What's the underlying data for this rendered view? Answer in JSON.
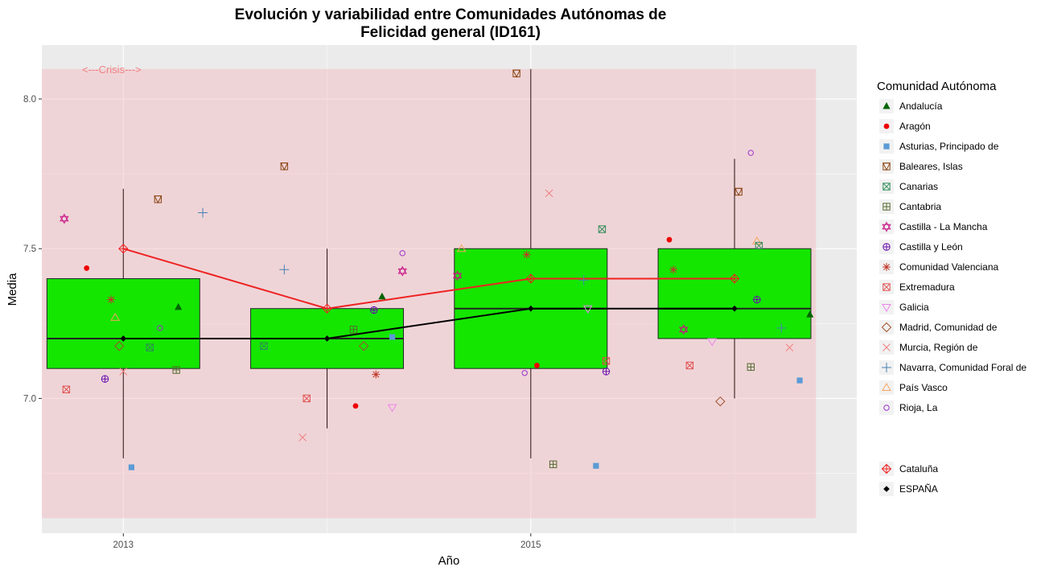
{
  "chart_data": {
    "type": "box",
    "title_line1": "Evolución y variabilidad entre Comunidades Autónomas de",
    "title_line2": "Felicidad general (ID161)",
    "xlabel": "Año",
    "ylabel": "Media",
    "x_ticks": [
      "2013",
      "2015"
    ],
    "y_ticks": [
      "7.0",
      "7.5",
      "8.0"
    ],
    "xlim": [
      2012.6,
      2016.6
    ],
    "ylim": [
      6.55,
      8.18
    ],
    "annotation": {
      "text": "<---Crisis--->",
      "color": "#f08080"
    },
    "crisis_band": {
      "x": [
        2012.6,
        2016.4
      ],
      "y": [
        6.6,
        8.1
      ],
      "color": "#f4b8be"
    },
    "box_fill": "#14e600",
    "boxes": [
      {
        "x": 2013,
        "min": 6.8,
        "q1": 7.1,
        "median": 7.2,
        "q3": 7.4,
        "max": 7.7
      },
      {
        "x": 2014,
        "min": 6.9,
        "q1": 7.1,
        "median": 7.2,
        "q3": 7.3,
        "max": 7.5
      },
      {
        "x": 2015,
        "min": 6.8,
        "q1": 7.1,
        "median": 7.3,
        "q3": 7.5,
        "max": 8.1
      },
      {
        "x": 2016,
        "min": 7.0,
        "q1": 7.2,
        "median": 7.3,
        "q3": 7.5,
        "max": 7.8
      }
    ],
    "legend_title": "Comunidad Autónoma",
    "legend_regions": [
      {
        "name": "Andalucía",
        "shape": "triangle-filled",
        "color": "#006400"
      },
      {
        "name": "Aragón",
        "shape": "circle-filled",
        "color": "#ee0000"
      },
      {
        "name": "Asturias, Principado de",
        "shape": "square-filled",
        "color": "#5b9bd5"
      },
      {
        "name": "Baleares, Islas",
        "shape": "square-triangle",
        "color": "#8b4513"
      },
      {
        "name": "Canarias",
        "shape": "square-x",
        "color": "#2e8b57"
      },
      {
        "name": "Cantabria",
        "shape": "square-plus",
        "color": "#556b2f"
      },
      {
        "name": "Castilla - La Mancha",
        "shape": "star-of-david",
        "color": "#c71585"
      },
      {
        "name": "Castilla y León",
        "shape": "circle-plus",
        "color": "#6a0dad"
      },
      {
        "name": "Comunidad Valenciana",
        "shape": "asterisk",
        "color": "#c0392b"
      },
      {
        "name": "Extremadura",
        "shape": "square-x",
        "color": "#e05050"
      },
      {
        "name": "Galicia",
        "shape": "triangle-down",
        "color": "#ee82ee"
      },
      {
        "name": "Madrid, Comunidad de",
        "shape": "diamond",
        "color": "#a0522d"
      },
      {
        "name": "Murcia, Región de",
        "shape": "x",
        "color": "#f08080"
      },
      {
        "name": "Navarra, Comunidad Foral de",
        "shape": "plus",
        "color": "#4682b4"
      },
      {
        "name": "País Vasco",
        "shape": "triangle-open",
        "color": "#f4a460"
      },
      {
        "name": "Rioja, La",
        "shape": "circle-open",
        "color": "#9932cc"
      }
    ],
    "legend_lines": [
      {
        "name": "Cataluña",
        "shape": "diamond-plus",
        "color": "#ee2222"
      },
      {
        "name": "ESPAÑA",
        "shape": "diamond-filled",
        "color": "#000000"
      }
    ],
    "series": [
      {
        "name": "Cataluña",
        "color": "#ee2222",
        "x": [
          2013,
          2014,
          2015,
          2016
        ],
        "y": [
          7.5,
          7.3,
          7.4,
          7.4
        ]
      },
      {
        "name": "ESPAÑA",
        "color": "#000000",
        "x": [
          2013,
          2014,
          2015,
          2016
        ],
        "y": [
          7.2,
          7.2,
          7.3,
          7.3
        ]
      }
    ],
    "points": [
      {
        "name": "Castilla - La Mancha",
        "x": 2012.71,
        "y": 7.6
      },
      {
        "name": "Aragón",
        "x": 2012.82,
        "y": 7.435
      },
      {
        "name": "Extremadura",
        "x": 2012.72,
        "y": 7.03
      },
      {
        "name": "Castilla y León",
        "x": 2012.91,
        "y": 7.065
      },
      {
        "name": "Comunidad Valenciana",
        "x": 2012.94,
        "y": 7.33
      },
      {
        "name": "País Vasco",
        "x": 2012.96,
        "y": 7.27
      },
      {
        "name": "Madrid, Comunidad de",
        "x": 2012.98,
        "y": 7.175
      },
      {
        "name": "Murcia, Región de",
        "x": 2013.0,
        "y": 7.09
      },
      {
        "name": "Asturias, Principado de",
        "x": 2013.04,
        "y": 6.77
      },
      {
        "name": "Canarias",
        "x": 2013.13,
        "y": 7.17
      },
      {
        "name": "Baleares, Islas",
        "x": 2013.17,
        "y": 7.665
      },
      {
        "name": "Rioja, La",
        "x": 2013.18,
        "y": 7.235
      },
      {
        "name": "Cantabria",
        "x": 2013.26,
        "y": 7.095
      },
      {
        "name": "Andalucía",
        "x": 2013.27,
        "y": 7.305
      },
      {
        "name": "Navarra, Comunidad Foral de",
        "x": 2013.39,
        "y": 7.62
      },
      {
        "name": "Canarias",
        "x": 2013.69,
        "y": 7.175
      },
      {
        "name": "Navarra, Comunidad Foral de",
        "x": 2013.79,
        "y": 7.43
      },
      {
        "name": "Baleares, Islas",
        "x": 2013.79,
        "y": 7.775
      },
      {
        "name": "Murcia, Región de",
        "x": 2013.88,
        "y": 6.87
      },
      {
        "name": "Extremadura",
        "x": 2013.9,
        "y": 7.0
      },
      {
        "name": "Aragón",
        "x": 2014.14,
        "y": 6.975
      },
      {
        "name": "Cantabria",
        "x": 2014.13,
        "y": 7.23
      },
      {
        "name": "Madrid, Comunidad de",
        "x": 2014.18,
        "y": 7.175
      },
      {
        "name": "Castilla y León",
        "x": 2014.23,
        "y": 7.295
      },
      {
        "name": "Comunidad Valenciana",
        "x": 2014.24,
        "y": 7.08
      },
      {
        "name": "Andalucía",
        "x": 2014.27,
        "y": 7.34
      },
      {
        "name": "Galicia",
        "x": 2014.32,
        "y": 6.97
      },
      {
        "name": "Asturias, Principado de",
        "x": 2014.32,
        "y": 7.205
      },
      {
        "name": "Castilla - La Mancha",
        "x": 2014.37,
        "y": 7.425
      },
      {
        "name": "Rioja, La",
        "x": 2014.37,
        "y": 7.485
      },
      {
        "name": "Castilla - La Mancha",
        "x": 2014.64,
        "y": 7.41
      },
      {
        "name": "País Vasco",
        "x": 2014.66,
        "y": 7.5
      },
      {
        "name": "Baleares, Islas",
        "x": 2014.93,
        "y": 8.085
      },
      {
        "name": "Rioja, La",
        "x": 2014.97,
        "y": 7.085
      },
      {
        "name": "Comunidad Valenciana",
        "x": 2014.98,
        "y": 7.48
      },
      {
        "name": "Aragón",
        "x": 2015.03,
        "y": 7.11
      },
      {
        "name": "Murcia, Región de",
        "x": 2015.09,
        "y": 7.685
      },
      {
        "name": "Cantabria",
        "x": 2015.11,
        "y": 6.78
      },
      {
        "name": "Navarra, Comunidad Foral de",
        "x": 2015.26,
        "y": 7.395
      },
      {
        "name": "Galicia",
        "x": 2015.28,
        "y": 7.3
      },
      {
        "name": "Asturias, Principado de",
        "x": 2015.32,
        "y": 6.775
      },
      {
        "name": "Canarias",
        "x": 2015.35,
        "y": 7.565
      },
      {
        "name": "Castilla y León",
        "x": 2015.37,
        "y": 7.09
      },
      {
        "name": "Extremadura",
        "x": 2015.37,
        "y": 7.125
      },
      {
        "name": "Aragón",
        "x": 2015.68,
        "y": 7.53
      },
      {
        "name": "Comunidad Valenciana",
        "x": 2015.7,
        "y": 7.43
      },
      {
        "name": "Castilla - La Mancha",
        "x": 2015.75,
        "y": 7.23
      },
      {
        "name": "Extremadura",
        "x": 2015.78,
        "y": 7.11
      },
      {
        "name": "Galicia",
        "x": 2015.89,
        "y": 7.19
      },
      {
        "name": "Madrid, Comunidad de",
        "x": 2015.93,
        "y": 6.99
      },
      {
        "name": "Baleares, Islas",
        "x": 2016.02,
        "y": 7.69
      },
      {
        "name": "Rioja, La",
        "x": 2016.08,
        "y": 7.82
      },
      {
        "name": "Cantabria",
        "x": 2016.08,
        "y": 7.105
      },
      {
        "name": "País Vasco",
        "x": 2016.11,
        "y": 7.525
      },
      {
        "name": "Castilla y León",
        "x": 2016.11,
        "y": 7.33
      },
      {
        "name": "Canarias",
        "x": 2016.12,
        "y": 7.51
      },
      {
        "name": "Navarra, Comunidad Foral de",
        "x": 2016.23,
        "y": 7.235
      },
      {
        "name": "Murcia, Región de",
        "x": 2016.27,
        "y": 7.17
      },
      {
        "name": "Asturias, Principado de",
        "x": 2016.32,
        "y": 7.06
      },
      {
        "name": "Andalucía",
        "x": 2016.37,
        "y": 7.28
      }
    ]
  }
}
